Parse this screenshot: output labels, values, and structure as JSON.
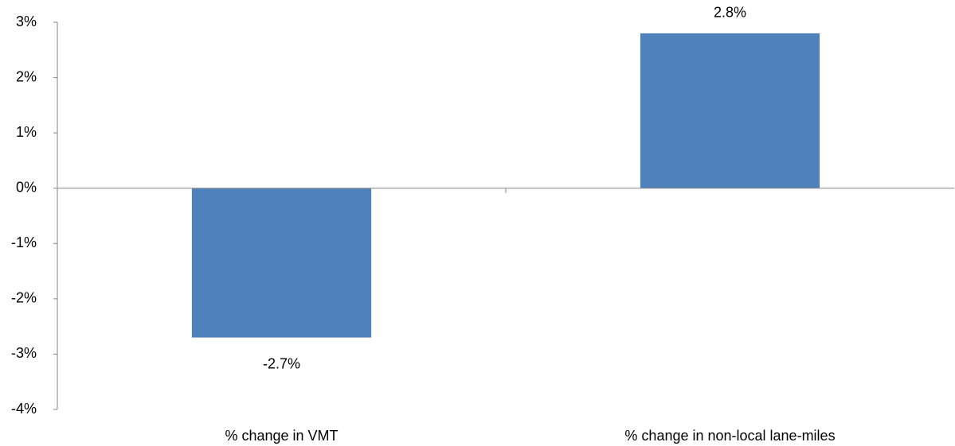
{
  "chart_data": {
    "type": "bar",
    "categories": [
      "% change in VMT",
      "% change in non-local lane-miles"
    ],
    "values": [
      -2.7,
      2.8
    ],
    "value_labels": [
      "-2.7%",
      "2.8%"
    ],
    "color": "#4f81bd",
    "ylim": [
      -4,
      3
    ],
    "yticks": [
      {
        "value": 3,
        "label": "3%"
      },
      {
        "value": 2,
        "label": "2%"
      },
      {
        "value": 1,
        "label": "1%"
      },
      {
        "value": 0,
        "label": "0%"
      },
      {
        "value": -1,
        "label": "-1%"
      },
      {
        "value": -2,
        "label": "-2%"
      },
      {
        "value": -3,
        "label": "-3%"
      },
      {
        "value": -4,
        "label": "-4%"
      }
    ],
    "grid": false
  }
}
